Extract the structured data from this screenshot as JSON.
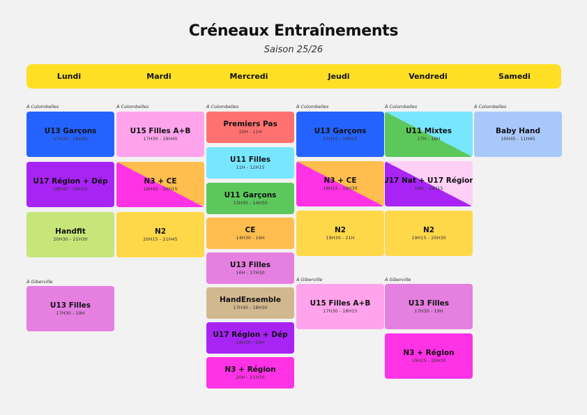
{
  "header": {
    "title": "Créneaux Entraînements",
    "subtitle": "Saison 25/26"
  },
  "days": [
    "Lundi",
    "Mardi",
    "Mercredi",
    "Jeudi",
    "Vendredi",
    "Samedi"
  ],
  "locations": {
    "colombelles": "À Colombelles",
    "giberville": "À Giberville"
  },
  "colors": {
    "blue": "#2563ff",
    "pink_light": "#ffa4ec",
    "salmon": "#ff7070",
    "cyan": "#78e6ff",
    "green": "#5cc85c",
    "orange": "#ffbe4d",
    "violet_pink": "#e57fe0",
    "tan": "#d2b88f",
    "purple": "#a824f5",
    "magenta": "#ff32e6",
    "lime": "#c7e67a",
    "yellow": "#ffd84a",
    "baby_blue": "#a8c8fb",
    "pale_pink": "#ffd0f6"
  },
  "sessions": {
    "lundi": [
      {
        "title": "U13 Garçons",
        "hours": "17H30 - 18H45"
      },
      {
        "title": "U17 Région + Dép",
        "hours": "18H45 - 20H15"
      },
      {
        "title": "Handfit",
        "hours": "20H30 - 21H30"
      },
      {
        "title": "U13 Filles",
        "hours": "17H30 - 19H"
      }
    ],
    "mardi": [
      {
        "title": "U15 Filles A+B",
        "hours": "17H30 - 18H45"
      },
      {
        "title": "N3 + CE",
        "hours": "18H45 - 20H15"
      },
      {
        "title": "N2",
        "hours": "20H15 - 21H45"
      }
    ],
    "mercredi": [
      {
        "title": "Premiers Pas",
        "hours": "10H - 11H"
      },
      {
        "title": "U11 Filles",
        "hours": "11H - 12H15"
      },
      {
        "title": "U11 Garçons",
        "hours": "13H30 - 14H30"
      },
      {
        "title": "CE",
        "hours": "14H30 - 16H"
      },
      {
        "title": "U13 Filles",
        "hours": "16H - 17H30"
      },
      {
        "title": "HandEnsemble",
        "hours": "17H30 - 18H30"
      },
      {
        "title": "U17 Région + Dép",
        "hours": "18H30 - 20H"
      },
      {
        "title": "N3 + Région",
        "hours": "20H - 21H30"
      }
    ],
    "jeudi": [
      {
        "title": "U13 Garçons",
        "hours": "17H15 - 18H15"
      },
      {
        "title": "N3 + CE",
        "hours": "18H15 - 19H30"
      },
      {
        "title": "N2",
        "hours": "19H30 - 21H"
      },
      {
        "title": "U15 Filles A+B",
        "hours": "17H30 - 18H15"
      }
    ],
    "vendredi": [
      {
        "title": "U11 Mixtes",
        "hours": "17H - 18H"
      },
      {
        "title": "U17 Nat + U17 Région",
        "hours": "18H - 19H15"
      },
      {
        "title": "N2",
        "hours": "19H15 - 20H30"
      },
      {
        "title": "U13 Filles",
        "hours": "17H30 - 19H"
      },
      {
        "title": "N3 + Région",
        "hours": "19H15 - 20H30"
      }
    ],
    "samedi": [
      {
        "title": "Baby Hand",
        "hours": "10H45 - 11H45"
      }
    ]
  }
}
